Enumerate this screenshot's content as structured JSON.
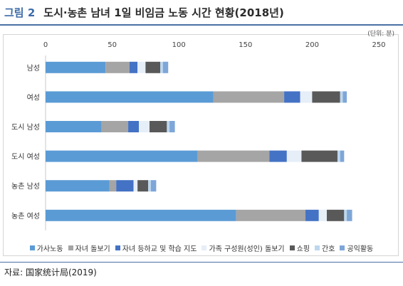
{
  "figure_label": "그림 2",
  "figure_title": "도시·농촌 남녀 1일 비임금 노동 시간 현황(2018년)",
  "unit": "(단위: 분)",
  "source": "자료: 国家统计局(2019)",
  "colors": [
    "#5b9bd5",
    "#a5a5a5",
    "#4472c4",
    "#e6eef8",
    "#595959",
    "#bdd7ee",
    "#7ea6d8"
  ],
  "chart_data": {
    "type": "bar",
    "orientation": "horizontal",
    "stacked": true,
    "title": "도시·농촌 남녀 1일 비임금 노동 시간 현황(2018년)",
    "categories": [
      "남성",
      "여성",
      "도시 남성",
      "도시 여성",
      "농촌 남성",
      "농촌 여성"
    ],
    "xlim": [
      0,
      250
    ],
    "xticks": [
      0,
      50,
      100,
      150,
      200,
      250
    ],
    "grid": false,
    "legend_position": "bottom",
    "series": [
      {
        "name": "가사노동",
        "values": [
          45,
          126,
          42,
          114,
          48,
          143
        ]
      },
      {
        "name": "자녀 돌보기",
        "values": [
          18,
          53,
          20,
          54,
          5,
          52
        ]
      },
      {
        "name": "자녀 등하교 및 학습 지도",
        "values": [
          6,
          12,
          8,
          13,
          13,
          10
        ]
      },
      {
        "name": "가족 구성원(성인) 돌보기",
        "values": [
          6,
          9,
          8,
          11,
          3,
          6
        ]
      },
      {
        "name": "쇼핑",
        "values": [
          11,
          21,
          13,
          27,
          8,
          13
        ]
      },
      {
        "name": "간호",
        "values": [
          2,
          2,
          2,
          2,
          2,
          2
        ]
      },
      {
        "name": "공익활동",
        "values": [
          4,
          3,
          4,
          3,
          4,
          4
        ]
      }
    ]
  }
}
